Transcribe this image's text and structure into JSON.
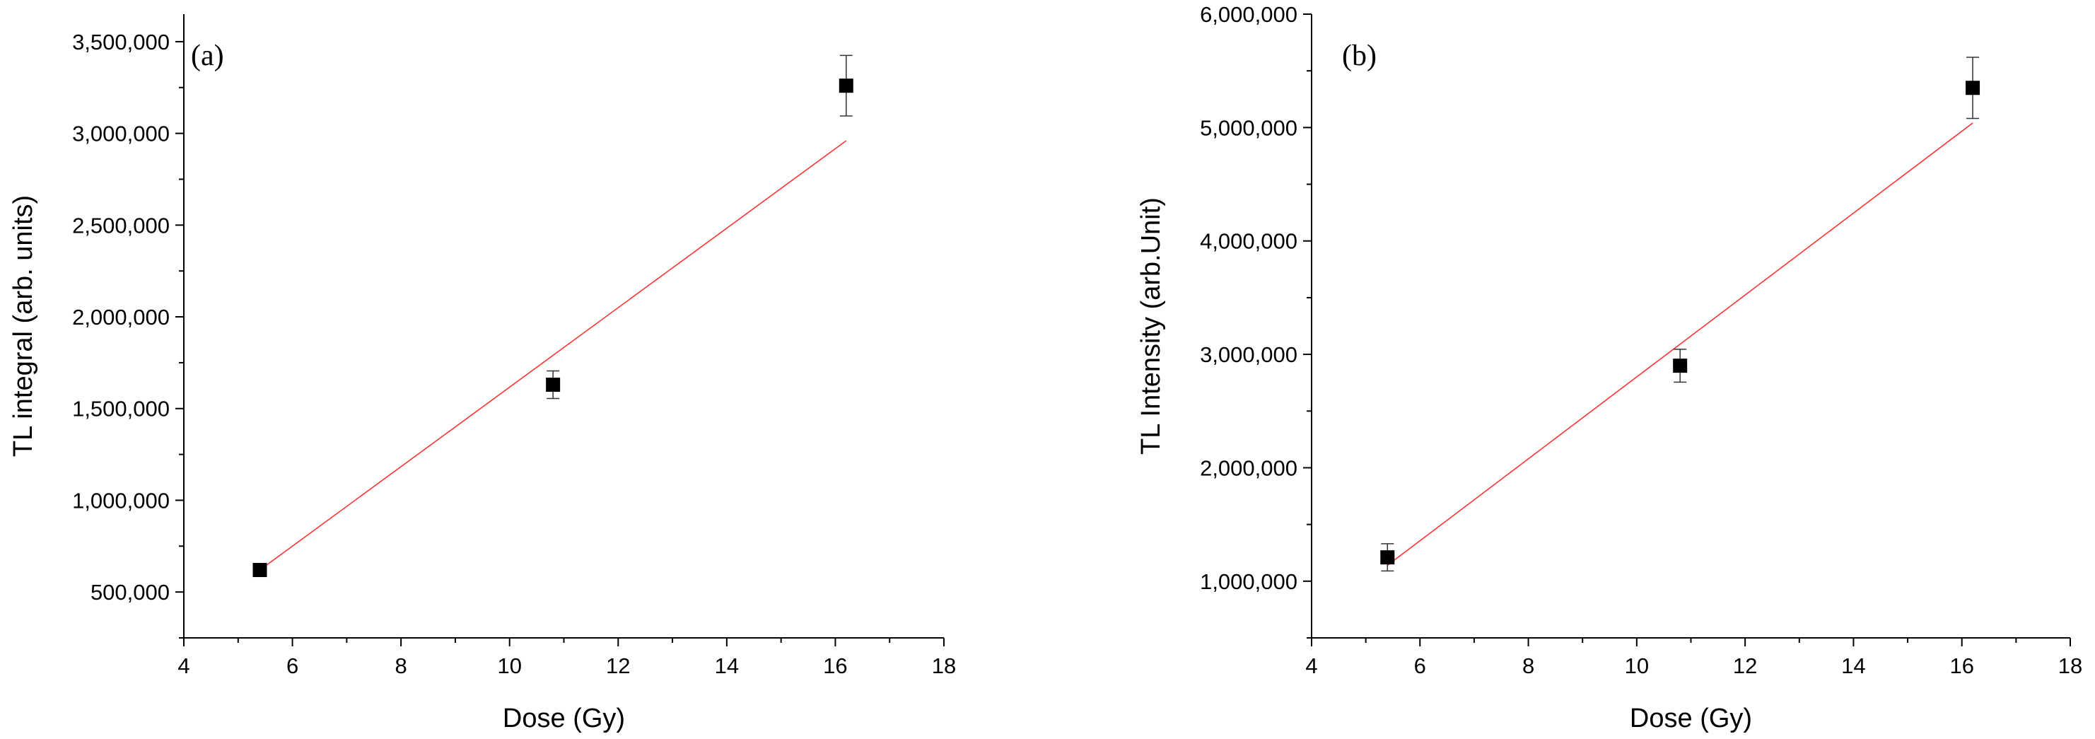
{
  "chart_data": [
    {
      "type": "scatter",
      "panel_label": "(a)",
      "xlabel": "Dose (Gy)",
      "ylabel": "TL integral (arb. units)",
      "xlim": [
        4,
        18
      ],
      "ylim": [
        250000,
        3650000
      ],
      "x_ticks": [
        4,
        6,
        8,
        10,
        12,
        14,
        16,
        18
      ],
      "x_tick_labels": [
        "4",
        "6",
        "8",
        "10",
        "12",
        "14",
        "16",
        "18"
      ],
      "y_ticks": [
        500000,
        1000000,
        1500000,
        2000000,
        2500000,
        3000000,
        3500000
      ],
      "y_tick_labels": [
        "500,000",
        "1,000,000",
        "1,500,000",
        "2,000,000",
        "2,500,000",
        "3,000,000",
        "3,500,000"
      ],
      "series": [
        {
          "x": [
            5.4,
            10.8,
            16.2
          ],
          "y": [
            620000,
            1630000,
            3260000
          ],
          "error": [
            25000,
            75000,
            165000
          ],
          "color": "#000000",
          "marker": "square"
        }
      ],
      "fit": {
        "x": [
          5.4,
          16.2
        ],
        "y": [
          620000,
          2960000
        ],
        "color": "#ff3333"
      },
      "grid": false
    },
    {
      "type": "scatter",
      "panel_label": "(b)",
      "xlabel": "Dose (Gy)",
      "ylabel": "TL Intensity (arb.Unit)",
      "xlim": [
        4,
        18
      ],
      "ylim": [
        500000,
        6000000
      ],
      "x_ticks": [
        4,
        6,
        8,
        10,
        12,
        14,
        16,
        18
      ],
      "x_tick_labels": [
        "4",
        "6",
        "8",
        "10",
        "12",
        "14",
        "16",
        "18"
      ],
      "y_ticks": [
        1000000,
        2000000,
        3000000,
        4000000,
        5000000,
        6000000
      ],
      "y_tick_labels": [
        "1,000,000",
        "2,000,000",
        "3,000,000",
        "4,000,000",
        "5,000,000",
        "6,000,000"
      ],
      "series": [
        {
          "x": [
            5.4,
            10.8,
            16.2
          ],
          "y": [
            1210000,
            2900000,
            5350000
          ],
          "error": [
            120000,
            145000,
            270000
          ],
          "color": "#000000",
          "marker": "square"
        }
      ],
      "fit": {
        "x": [
          5.4,
          16.2
        ],
        "y": [
          1140000,
          5040000
        ],
        "color": "#ff3333"
      },
      "grid": false
    }
  ]
}
